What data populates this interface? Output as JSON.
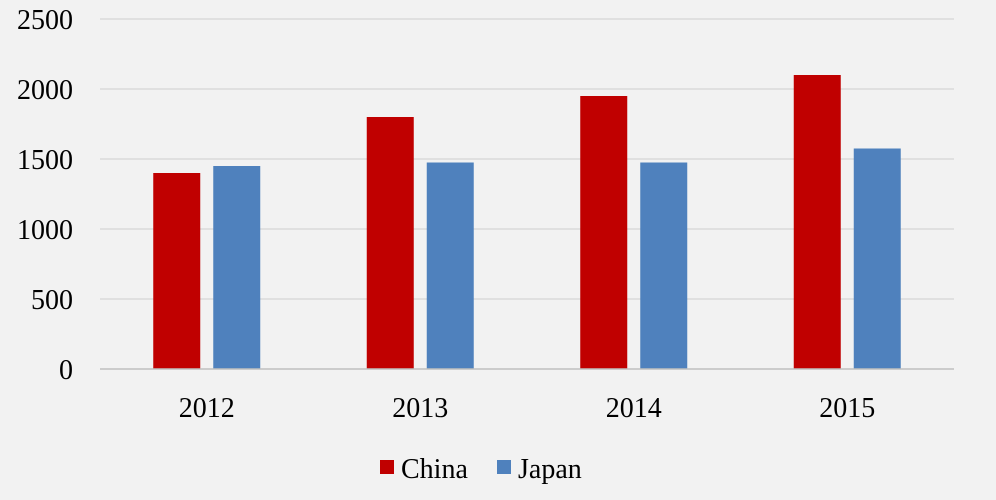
{
  "chart_data": {
    "type": "bar",
    "title": "",
    "xlabel": "",
    "ylabel": "",
    "categories": [
      "2012",
      "2013",
      "2014",
      "2015"
    ],
    "series": [
      {
        "name": "China",
        "color": "#c00000",
        "values": [
          1400,
          1800,
          1950,
          2100
        ]
      },
      {
        "name": "Japan",
        "color": "#4f81bd",
        "values": [
          1450,
          1475,
          1475,
          1575
        ]
      }
    ],
    "ylim": [
      0,
      2500
    ],
    "yticks": [
      "0",
      "500",
      "1000",
      "1500",
      "2000",
      "2500"
    ],
    "grid": true,
    "legend_position": "bottom"
  }
}
